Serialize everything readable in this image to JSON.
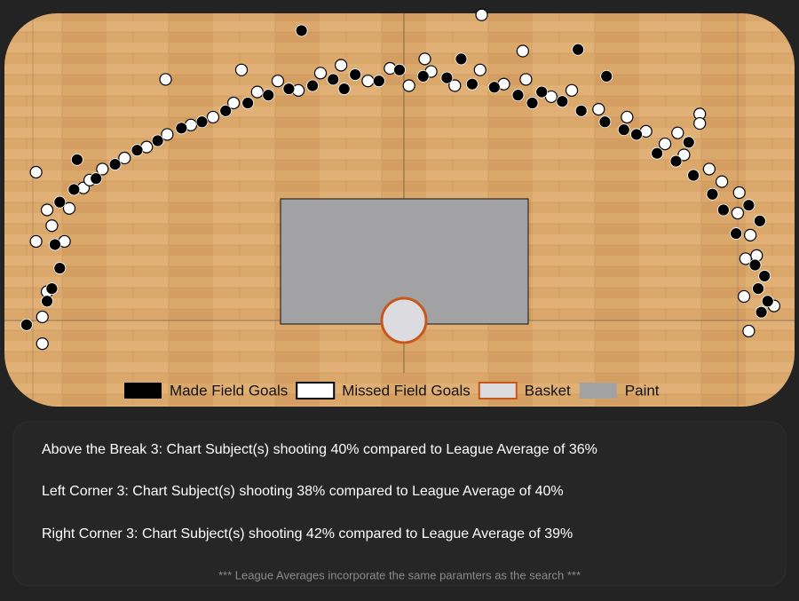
{
  "chart_data": {
    "type": "scatter",
    "xlim": [
      -25,
      25
    ],
    "ylim": [
      -5.5,
      19.5
    ],
    "series": [
      {
        "name": "Made Field Goals",
        "color": "#000000",
        "x": [
          22.9,
          23.3,
          22.7,
          23.1,
          22.5,
          22.1,
          22.8,
          21.3,
          20.5,
          19.8,
          18.6,
          17.5,
          16.3,
          15.0,
          14.2,
          13.0,
          11.5,
          10.3,
          9.0,
          7.5,
          6.0,
          4.6,
          3.0,
          1.5,
          0.0,
          -1.3,
          -2.8,
          -4.2,
          -5.5,
          -7.0,
          -8.3,
          -9.6,
          -11.0,
          -12.5,
          -13.8,
          -15.3,
          -16.6,
          -18.0,
          -19.2,
          -20.6,
          -21.5,
          -20.4,
          3.9,
          -6.2,
          11.3,
          18.3,
          13.1,
          -21.5,
          -22.0,
          -22.3,
          -23.6,
          -21.8,
          8.4,
          -3.5
        ],
        "values": [
          0.5,
          1.2,
          2.0,
          2.8,
          3.5,
          7.3,
          6.3,
          5.5,
          7.0,
          8.0,
          9.2,
          10.1,
          10.6,
          11.8,
          12.1,
          12.6,
          13.3,
          13.9,
          14.5,
          14.3,
          14.8,
          15.0,
          15.4,
          15.5,
          15.9,
          15.2,
          15.6,
          15.3,
          14.9,
          14.7,
          14.3,
          13.8,
          13.3,
          12.6,
          12.2,
          11.4,
          10.8,
          9.9,
          9.0,
          8.3,
          7.5,
          10.2,
          16.6,
          18.4,
          17.2,
          11.3,
          15.5,
          3.3,
          2.0,
          1.2,
          -0.3,
          4.8,
          13.8,
          14.7
        ]
      },
      {
        "name": "Missed Field Goals",
        "color": "#ffffff",
        "x": [
          23.7,
          22.6,
          22.2,
          21.4,
          20.4,
          19.6,
          18.0,
          16.8,
          15.6,
          14.4,
          12.6,
          10.9,
          9.6,
          8.0,
          6.6,
          5.1,
          3.5,
          2.0,
          0.6,
          -0.6,
          -2.0,
          -3.7,
          -5.0,
          -6.4,
          -7.7,
          -9.0,
          -10.5,
          -11.8,
          -13.2,
          -14.7,
          -16.0,
          -17.4,
          -18.8,
          -20.0,
          -22.3,
          -22.0,
          -21.2,
          -22.3,
          -22.6,
          -22.6,
          -23.0,
          -23.0,
          -19.6,
          -20.9,
          5.2,
          7.8,
          1.6,
          -10.0,
          -14.8,
          19.0,
          19.0,
          17.6,
          21.5,
          21.8,
          22.1,
          21.9
        ],
        "values": [
          0.9,
          4.1,
          5.4,
          6.8,
          8.8,
          9.6,
          10.5,
          11.2,
          12.0,
          12.9,
          13.4,
          14.6,
          14.2,
          15.3,
          15.0,
          15.9,
          14.9,
          15.8,
          14.9,
          16.0,
          15.2,
          16.2,
          15.7,
          14.6,
          15.2,
          14.5,
          13.8,
          12.9,
          12.4,
          11.8,
          11.0,
          10.3,
          9.6,
          8.4,
          7.0,
          6.0,
          5.0,
          1.8,
          0.2,
          -1.5,
          5.0,
          9.4,
          8.9,
          7.1,
          19.4,
          17.1,
          16.6,
          15.9,
          15.3,
          13.1,
          12.5,
          11.9,
          8.1,
          1.5,
          -0.7,
          3.9
        ]
      }
    ],
    "legend_extra": [
      {
        "name": "Basket",
        "color": "#dcdce0",
        "edge": "#c8571a"
      },
      {
        "name": "Paint",
        "color": "#a2a2a5"
      }
    ]
  },
  "notes": [
    "Above the Break 3: Chart Subject(s) shooting 40% compared to League Average of 36%",
    "Left Corner 3: Chart Subject(s) shooting 38% compared to League Average of 40%",
    "Right Corner 3: Chart Subject(s) shooting 42% compared to League Average of 39%"
  ],
  "footer": "*** League Averages incorporate the same paramters as the search ***"
}
